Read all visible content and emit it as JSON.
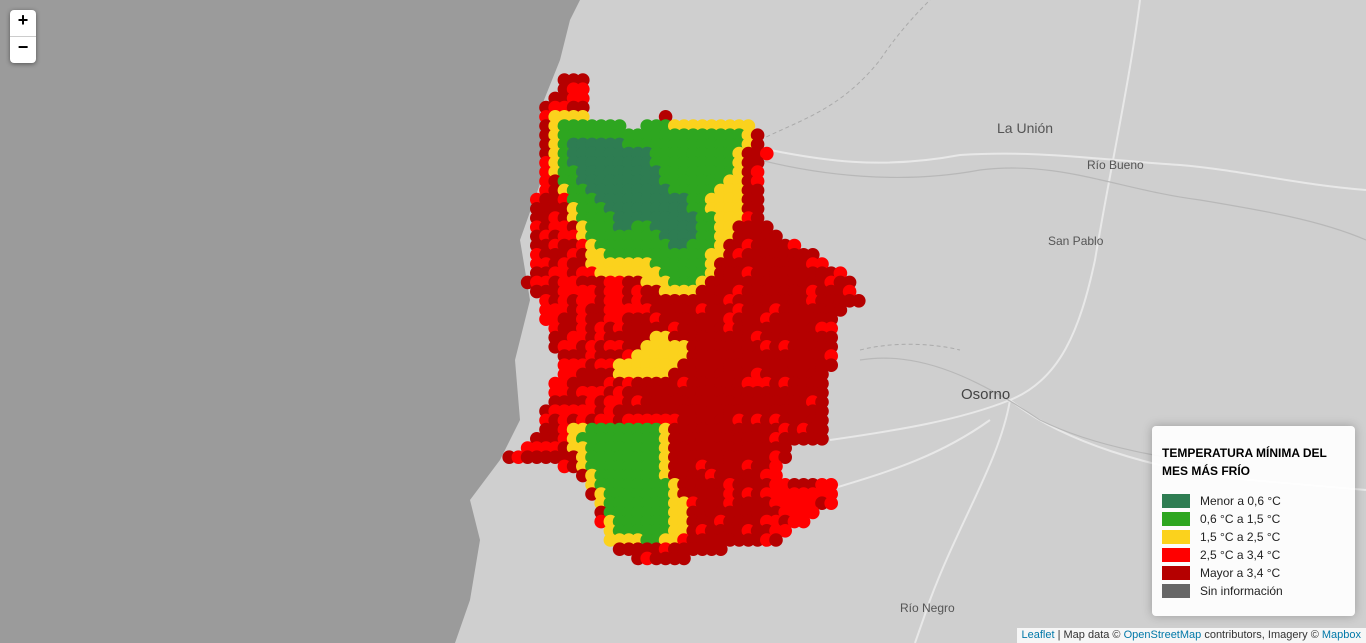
{
  "zoom": {
    "in_label": "+",
    "out_label": "−"
  },
  "places": [
    {
      "name": "La Unión"
    },
    {
      "name": "Río Bueno"
    },
    {
      "name": "San Pablo"
    },
    {
      "name": "Osorno"
    },
    {
      "name": "Río Negro"
    }
  ],
  "legend": {
    "title": "TEMPERATURA MÍNIMA DEL MES MÁS FRÍO",
    "items": [
      {
        "label": "Menor a 0,6 °C",
        "color": "#2e7d52"
      },
      {
        "label": "0,6 °C a 1,5 °C",
        "color": "#2ea620"
      },
      {
        "label": "1,5 °C a 2,5 °C",
        "color": "#fbd21d"
      },
      {
        "label": "2,5 °C a 3,4 °C",
        "color": "#ff0000"
      },
      {
        "label": "Mayor a 3,4 °C",
        "color": "#b50000"
      },
      {
        "label": "Sin información",
        "color": "#666666"
      }
    ]
  },
  "attribution": {
    "leaflet": "Leaflet",
    "sep": " | Map data © ",
    "osm": "OpenStreetMap",
    "middle": " contributors, Imagery © ",
    "mapbox": "Mapbox"
  }
}
